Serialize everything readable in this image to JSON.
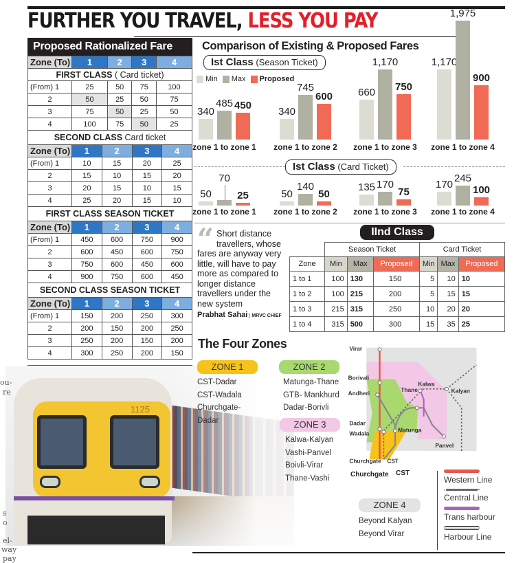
{
  "headline": {
    "part1": "FURTHER YOU TRAVEL,",
    "part2": "LESS YOU PAY",
    "color_dark": "#1a1a1a",
    "color_red": "#e3202a"
  },
  "rationalized": {
    "title": "Proposed Rationalized Fare",
    "zone_header": "Zone (To)",
    "zones": [
      "1",
      "2",
      "3",
      "4"
    ],
    "tables": [
      {
        "section": "FIRST CLASS",
        "section_sub": " ( Card ticket)",
        "rows": [
          {
            "from": "(From) 1",
            "vals": [
              "25",
              "50",
              "75",
              "100"
            ]
          },
          {
            "from": "2",
            "vals": [
              "50",
              "25",
              "50",
              "75"
            ]
          },
          {
            "from": "3",
            "vals": [
              "75",
              "50",
              "25",
              "50"
            ]
          },
          {
            "from": "4",
            "vals": [
              "100",
              "75",
              "50",
              "25"
            ]
          }
        ]
      },
      {
        "section": "SECOND CLASS",
        "section_sub": " Card ticket",
        "rows": [
          {
            "from": "(From) 1",
            "vals": [
              "10",
              "15",
              "20",
              "25"
            ]
          },
          {
            "from": "2",
            "vals": [
              "15",
              "10",
              "15",
              "20"
            ]
          },
          {
            "from": "3",
            "vals": [
              "20",
              "15",
              "10",
              "15"
            ]
          },
          {
            "from": "4",
            "vals": [
              "25",
              "20",
              "15",
              "10"
            ]
          }
        ]
      },
      {
        "section": "FIRST CLASS SEASON TICKET",
        "section_sub": "",
        "rows": [
          {
            "from": "(From) 1",
            "vals": [
              "450",
              "600",
              "750",
              "900"
            ]
          },
          {
            "from": "2",
            "vals": [
              "600",
              "450",
              "600",
              "750"
            ]
          },
          {
            "from": "3",
            "vals": [
              "750",
              "600",
              "450",
              "600"
            ]
          },
          {
            "from": "4",
            "vals": [
              "900",
              "750",
              "600",
              "450"
            ]
          }
        ]
      },
      {
        "section": "SECOND CLASS SEASON TICKET",
        "section_sub": "",
        "rows": [
          {
            "from": "(From) 1",
            "vals": [
              "150",
              "200",
              "250",
              "300"
            ]
          },
          {
            "from": "2",
            "vals": [
              "200",
              "150",
              "200",
              "250"
            ]
          },
          {
            "from": "3",
            "vals": [
              "250",
              "200",
              "150",
              "200"
            ]
          },
          {
            "from": "4",
            "vals": [
              "300",
              "250",
              "200",
              "150"
            ]
          }
        ]
      }
    ]
  },
  "comparison": {
    "title": "Comparison of Existing & Proposed Fares",
    "season_pill": {
      "bold": "Ist Class",
      "sub": " (Season Ticket)"
    },
    "card_pill": {
      "bold": "Ist Class",
      "sub": " (Card Ticket)"
    },
    "legend": {
      "min": "Min",
      "max": "Max",
      "proposed": "Proposed"
    },
    "colors": {
      "min": "#dcdcd2",
      "max": "#b1b1a3",
      "proposed": "#f06a55"
    }
  },
  "chart_data": [
    {
      "type": "bar",
      "title": "Ist Class (Season Ticket)",
      "categories": [
        "zone 1 to zone 1",
        "zone 1 to zone 2",
        "zone 1 to zone 3",
        "zone 1 to zone 4"
      ],
      "series": [
        {
          "name": "Min",
          "values": [
            340,
            340,
            660,
            1170
          ]
        },
        {
          "name": "Max",
          "values": [
            485,
            745,
            1170,
            1975
          ]
        },
        {
          "name": "Proposed",
          "values": [
            450,
            600,
            750,
            900
          ]
        }
      ],
      "labels": {
        "Min": [
          "340",
          "340",
          "660",
          "1,170"
        ],
        "Max": [
          "485",
          "745",
          "1,170",
          "1,975"
        ],
        "Proposed": [
          "450",
          "600",
          "750",
          "900"
        ]
      }
    },
    {
      "type": "bar",
      "title": "Ist Class (Card Ticket)",
      "categories": [
        "zone 1 to zone 1",
        "zone 1 to zone 2",
        "zone 1 to zone 3",
        "zone 1 to zone 4"
      ],
      "series": [
        {
          "name": "Min",
          "values": [
            50,
            50,
            135,
            170
          ]
        },
        {
          "name": "Max",
          "values": [
            70,
            140,
            170,
            245
          ]
        },
        {
          "name": "Proposed",
          "values": [
            25,
            50,
            75,
            100
          ]
        }
      ],
      "labels": {
        "Min": [
          "50",
          "50",
          "135",
          "170"
        ],
        "Max": [
          "70",
          "140",
          "170",
          "245"
        ],
        "Proposed": [
          "25",
          "50",
          "75",
          "100"
        ]
      }
    },
    {
      "type": "table",
      "title": "IInd Class",
      "columns": [
        "Zone",
        "Season Min",
        "Season Max",
        "Season Proposed",
        "Card Min",
        "Card Max",
        "Card Proposed"
      ],
      "rows": [
        [
          "1 to 1",
          100,
          130,
          150,
          5,
          10,
          10
        ],
        [
          "1 to 2",
          100,
          215,
          200,
          5,
          15,
          15
        ],
        [
          "1 to 3",
          215,
          315,
          250,
          10,
          20,
          20
        ],
        [
          "1 to 4",
          315,
          500,
          300,
          15,
          35,
          25
        ]
      ]
    }
  ],
  "quote": {
    "text": "Short distance travellers, whose fares are anyway very little, will have to pay more as compared to longer distance travellers under the new system",
    "author": "Prabhat Sahai",
    "role": "MRVC CHIEF"
  },
  "second_class": {
    "title": "IInd Class",
    "group_season": "Season Ticket",
    "group_card": "Card Ticket",
    "headers": [
      "Zone",
      "Min",
      "Max",
      "Proposed",
      "Min",
      "Max",
      "Proposed"
    ],
    "rows": [
      [
        "1 to 1",
        "100",
        "130",
        "150",
        "5",
        "10",
        "10"
      ],
      [
        "1 to 2",
        "100",
        "215",
        "200",
        "5",
        "15",
        "15"
      ],
      [
        "1 to 3",
        "215",
        "315",
        "250",
        "10",
        "20",
        "20"
      ],
      [
        "1 to 4",
        "315",
        "500",
        "300",
        "15",
        "35",
        "25"
      ]
    ]
  },
  "zones": {
    "title": "The Four Zones",
    "list": [
      {
        "label": "ZONE 1",
        "color": "#f7c21a",
        "items": [
          "CST-Dadar",
          "CST-Wadala",
          "Churchgate-Dadar"
        ]
      },
      {
        "label": "ZONE 2",
        "color": "#a9d86e",
        "items": [
          "Matunga-Thane",
          "GTB- Mankhurd",
          "Dadar-Borivli"
        ]
      },
      {
        "label": "ZONE 3",
        "color": "#f2c8e6",
        "items": [
          "Kalwa-Kalyan",
          "Vashi-Panvel",
          "Boivli-Virar",
          "Thane-Vashi"
        ]
      },
      {
        "label": "ZONE 4",
        "color": "#e3e3e3",
        "items": [
          "Beyond Kalyan",
          "Beyond Virar"
        ]
      }
    ]
  },
  "map": {
    "stations": [
      "Virar",
      "Borivali",
      "Andheri",
      "Thane",
      "Kalwa",
      "Kalyan",
      "Dadar",
      "Wadala",
      "Matunga",
      "Panvel",
      "Churchgate",
      "CST"
    ],
    "legend": [
      {
        "label": "Western Line",
        "color": "#e8574a",
        "style": "solid"
      },
      {
        "label": "Central Line",
        "color": "#666666",
        "style": "dotted"
      },
      {
        "label": "Trans harbour",
        "color": "#b05fc0",
        "style": "solid"
      },
      {
        "label": "Harbour Line",
        "color": "#555555",
        "style": "double"
      }
    ]
  },
  "photo": {
    "train_number": "1125"
  },
  "side_text": [
    "ou-",
    "re",
    "s",
    "o",
    "el-",
    "way",
    "pay"
  ]
}
